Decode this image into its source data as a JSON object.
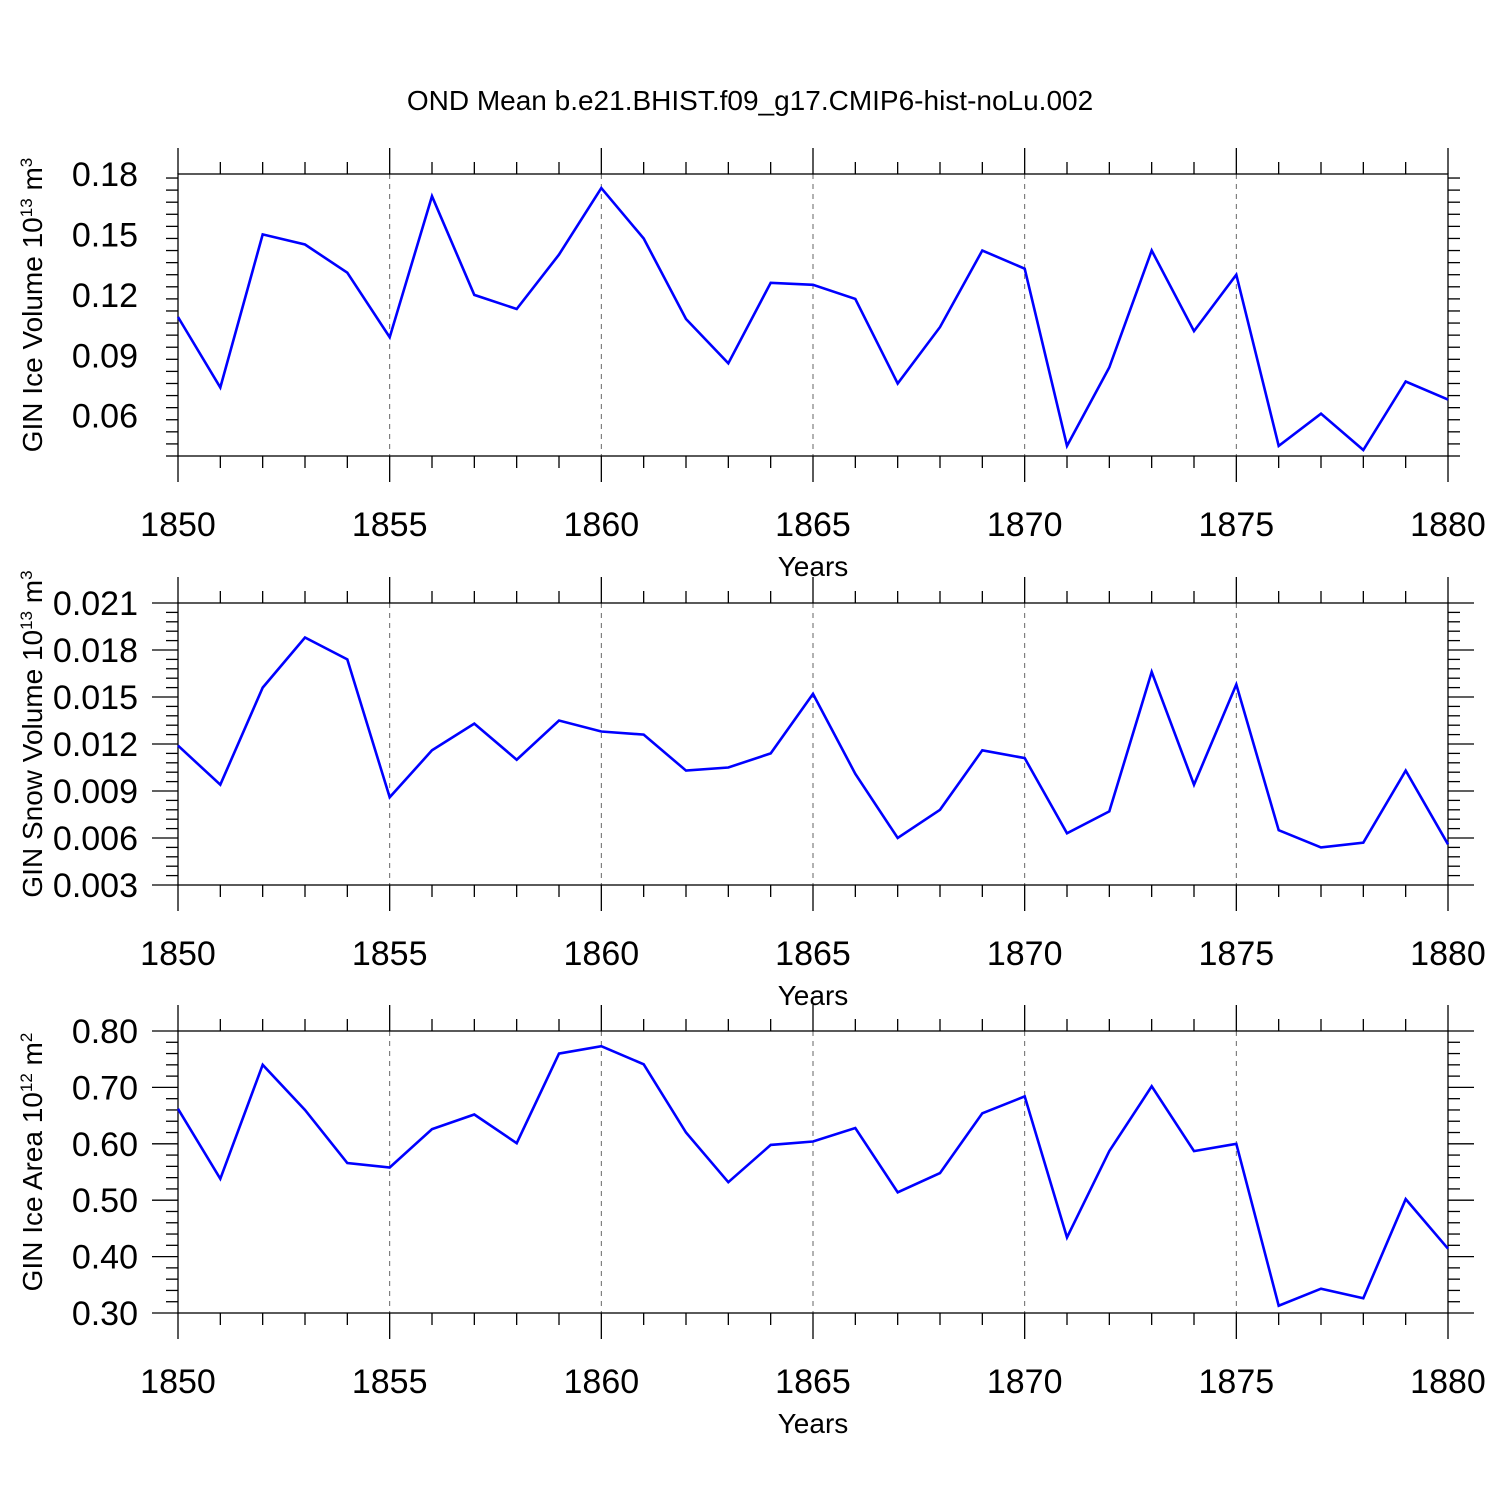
{
  "title": "OND Mean b.e21.BHIST.f09_g17.CMIP6-hist-noLu.002",
  "colors": {
    "line": "#0000ff",
    "frame": "#000000",
    "grid": "#666666"
  },
  "chart_data": [
    {
      "type": "line",
      "ylabel_main": "GIN Ice Volume 10",
      "ylabel_exp": "13",
      "ylabel_unit": "m",
      "ylabel_unit_exp": "3",
      "xlabel": "Years",
      "xlim": [
        1850,
        1880
      ],
      "ylim": [
        0.04,
        0.18
      ],
      "yticks": [
        0.06,
        0.09,
        0.12,
        0.15,
        0.18
      ],
      "ytick_labels": [
        "0.06",
        "0.09",
        "0.12",
        "0.15",
        "0.18"
      ],
      "xticks": [
        1850,
        1855,
        1860,
        1865,
        1870,
        1875,
        1880
      ],
      "xtick_labels": [
        "1850",
        "1855",
        "1860",
        "1865",
        "1870",
        "1875",
        "1880"
      ],
      "grid_x": [
        1855,
        1860,
        1865,
        1870,
        1875
      ],
      "x": [
        1850,
        1851,
        1852,
        1853,
        1854,
        1855,
        1856,
        1857,
        1858,
        1859,
        1860,
        1861,
        1862,
        1863,
        1864,
        1865,
        1866,
        1867,
        1868,
        1869,
        1870,
        1871,
        1872,
        1873,
        1874,
        1875,
        1876,
        1877,
        1878,
        1879,
        1880
      ],
      "values": [
        0.109,
        0.074,
        0.15,
        0.145,
        0.131,
        0.099,
        0.169,
        0.12,
        0.113,
        0.14,
        0.173,
        0.148,
        0.108,
        0.086,
        0.126,
        0.125,
        0.118,
        0.076,
        0.104,
        0.142,
        0.133,
        0.045,
        0.084,
        0.142,
        0.102,
        0.13,
        0.045,
        0.061,
        0.043,
        0.077,
        0.068
      ]
    },
    {
      "type": "line",
      "ylabel_main": "GIN Snow Volume 10",
      "ylabel_exp": "13",
      "ylabel_unit": "m",
      "ylabel_unit_exp": "3",
      "xlabel": "Years",
      "xlim": [
        1850,
        1880
      ],
      "ylim": [
        0.003,
        0.021
      ],
      "yticks": [
        0.003,
        0.006,
        0.009,
        0.012,
        0.015,
        0.018,
        0.021
      ],
      "ytick_labels": [
        "0.003",
        "0.006",
        "0.009",
        "0.012",
        "0.015",
        "0.018",
        "0.021"
      ],
      "xticks": [
        1850,
        1855,
        1860,
        1865,
        1870,
        1875,
        1880
      ],
      "xtick_labels": [
        "1850",
        "1855",
        "1860",
        "1865",
        "1870",
        "1875",
        "1880"
      ],
      "grid_x": [
        1855,
        1860,
        1865,
        1870,
        1875
      ],
      "x": [
        1850,
        1851,
        1852,
        1853,
        1854,
        1855,
        1856,
        1857,
        1858,
        1859,
        1860,
        1861,
        1862,
        1863,
        1864,
        1865,
        1866,
        1867,
        1868,
        1869,
        1870,
        1871,
        1872,
        1873,
        1874,
        1875,
        1876,
        1877,
        1878,
        1879,
        1880
      ],
      "values": [
        0.0119,
        0.0094,
        0.0156,
        0.0188,
        0.0174,
        0.0086,
        0.0116,
        0.0133,
        0.011,
        0.0135,
        0.0128,
        0.0126,
        0.0103,
        0.0105,
        0.0114,
        0.0152,
        0.0101,
        0.006,
        0.0078,
        0.0116,
        0.0111,
        0.0063,
        0.0077,
        0.0166,
        0.0094,
        0.0158,
        0.0065,
        0.0054,
        0.0057,
        0.0103,
        0.0056
      ]
    },
    {
      "type": "line",
      "ylabel_main": "GIN Ice Area 10",
      "ylabel_exp": "12",
      "ylabel_unit": "m",
      "ylabel_unit_exp": "2",
      "xlabel": "Years",
      "xlim": [
        1850,
        1880
      ],
      "ylim": [
        0.3,
        0.8
      ],
      "yticks": [
        0.3,
        0.4,
        0.5,
        0.6,
        0.7,
        0.8
      ],
      "ytick_labels": [
        "0.30",
        "0.40",
        "0.50",
        "0.60",
        "0.70",
        "0.80"
      ],
      "xticks": [
        1850,
        1855,
        1860,
        1865,
        1870,
        1875,
        1880
      ],
      "xtick_labels": [
        "1850",
        "1855",
        "1860",
        "1865",
        "1870",
        "1875",
        "1880"
      ],
      "grid_x": [
        1855,
        1860,
        1865,
        1870,
        1875
      ],
      "x": [
        1850,
        1851,
        1852,
        1853,
        1854,
        1855,
        1856,
        1857,
        1858,
        1859,
        1860,
        1861,
        1862,
        1863,
        1864,
        1865,
        1866,
        1867,
        1868,
        1869,
        1870,
        1871,
        1872,
        1873,
        1874,
        1875,
        1876,
        1877,
        1878,
        1879,
        1880
      ],
      "values": [
        0.662,
        0.538,
        0.74,
        0.66,
        0.566,
        0.558,
        0.626,
        0.652,
        0.601,
        0.76,
        0.773,
        0.741,
        0.62,
        0.532,
        0.598,
        0.604,
        0.628,
        0.514,
        0.548,
        0.654,
        0.684,
        0.434,
        0.587,
        0.702,
        0.587,
        0.6,
        0.313,
        0.343,
        0.326,
        0.502,
        0.414
      ]
    }
  ]
}
